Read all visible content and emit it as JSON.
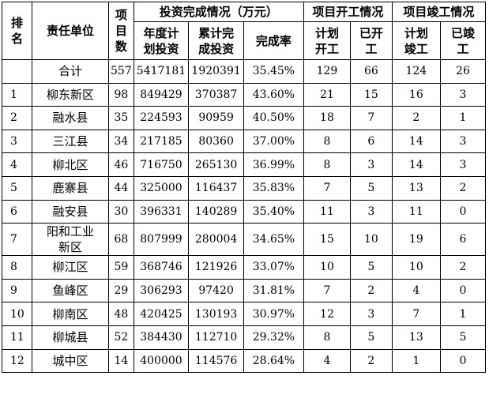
{
  "table": {
    "headers": {
      "rank": "排名",
      "unit": "责任单位",
      "projects": "项目数",
      "investment_group": "投资完成情况（万元）",
      "annual_plan": "年度计划投资",
      "cumulative": "累计完成投资",
      "rate": "完成率",
      "start_group": "项目开工情况",
      "plan_start": "计划开工",
      "started": "已开工",
      "complete_group": "项目竣工情况",
      "plan_complete": "计划竣工",
      "completed": "已竣工"
    },
    "total": {
      "label": "合计",
      "projects": "557",
      "annual_plan": "5417181",
      "cumulative": "1920391",
      "rate": "35.45%",
      "plan_start": "129",
      "started": "66",
      "plan_complete": "124",
      "completed": "26"
    },
    "rows": [
      {
        "rank": "1",
        "unit": "柳东新区",
        "projects": "98",
        "annual_plan": "849429",
        "cumulative": "370387",
        "rate": "43.60%",
        "plan_start": "21",
        "started": "15",
        "plan_complete": "16",
        "completed": "3"
      },
      {
        "rank": "2",
        "unit": "融水县",
        "projects": "35",
        "annual_plan": "224593",
        "cumulative": "90959",
        "rate": "40.50%",
        "plan_start": "18",
        "started": "7",
        "plan_complete": "2",
        "completed": "1"
      },
      {
        "rank": "3",
        "unit": "三江县",
        "projects": "34",
        "annual_plan": "217185",
        "cumulative": "80360",
        "rate": "37.00%",
        "plan_start": "8",
        "started": "6",
        "plan_complete": "14",
        "completed": "3"
      },
      {
        "rank": "4",
        "unit": "柳北区",
        "projects": "46",
        "annual_plan": "716750",
        "cumulative": "265130",
        "rate": "36.99%",
        "plan_start": "8",
        "started": "3",
        "plan_complete": "14",
        "completed": "3"
      },
      {
        "rank": "5",
        "unit": "鹿寨县",
        "projects": "44",
        "annual_plan": "325000",
        "cumulative": "116437",
        "rate": "35.83%",
        "plan_start": "7",
        "started": "5",
        "plan_complete": "13",
        "completed": "2"
      },
      {
        "rank": "6",
        "unit": "融安县",
        "projects": "30",
        "annual_plan": "396331",
        "cumulative": "140289",
        "rate": "35.40%",
        "plan_start": "11",
        "started": "3",
        "plan_complete": "11",
        "completed": "0"
      },
      {
        "rank": "7",
        "unit": "阳和工业新区",
        "projects": "68",
        "annual_plan": "807999",
        "cumulative": "280004",
        "rate": "34.65%",
        "plan_start": "15",
        "started": "10",
        "plan_complete": "19",
        "completed": "6"
      },
      {
        "rank": "8",
        "unit": "柳江区",
        "projects": "59",
        "annual_plan": "368746",
        "cumulative": "121926",
        "rate": "33.07%",
        "plan_start": "10",
        "started": "5",
        "plan_complete": "10",
        "completed": "2"
      },
      {
        "rank": "9",
        "unit": "鱼峰区",
        "projects": "29",
        "annual_plan": "306293",
        "cumulative": "97420",
        "rate": "31.81%",
        "plan_start": "7",
        "started": "2",
        "plan_complete": "4",
        "completed": "0"
      },
      {
        "rank": "10",
        "unit": "柳南区",
        "projects": "48",
        "annual_plan": "420425",
        "cumulative": "130193",
        "rate": "30.97%",
        "plan_start": "12",
        "started": "3",
        "plan_complete": "7",
        "completed": "1"
      },
      {
        "rank": "11",
        "unit": "柳城县",
        "projects": "52",
        "annual_plan": "384430",
        "cumulative": "112710",
        "rate": "29.32%",
        "plan_start": "8",
        "started": "5",
        "plan_complete": "13",
        "completed": "5"
      },
      {
        "rank": "12",
        "unit": "城中区",
        "projects": "14",
        "annual_plan": "400000",
        "cumulative": "114576",
        "rate": "28.64%",
        "plan_start": "4",
        "started": "2",
        "plan_complete": "1",
        "completed": "0"
      }
    ]
  }
}
